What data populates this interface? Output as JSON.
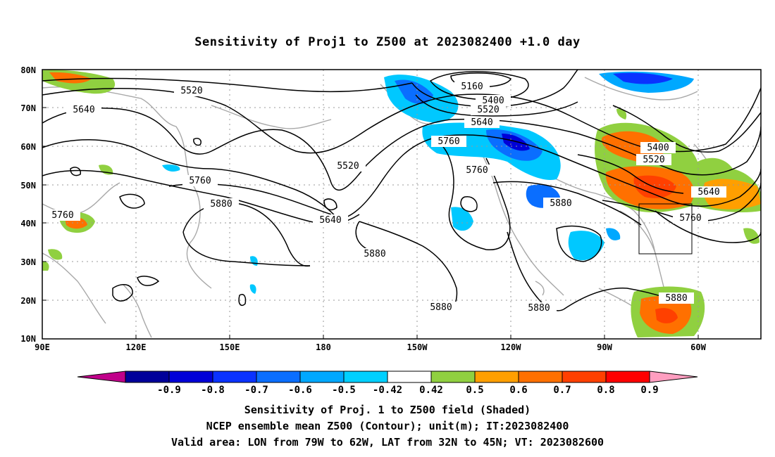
{
  "title": "Sensitivity of Proj1 to Z500 at 2023082400 +1.0 day",
  "axes": {
    "lat_labels": [
      "80N",
      "70N",
      "60N",
      "50N",
      "40N",
      "30N",
      "20N",
      "10N"
    ],
    "lon_labels": [
      "90E",
      "120E",
      "150E",
      "180",
      "150W",
      "120W",
      "90W",
      "60W"
    ]
  },
  "contour_labels": [
    "5520",
    "5640",
    "5160",
    "5400",
    "5520",
    "5640",
    "5760",
    "5400",
    "5520",
    "5640",
    "5760",
    "5760",
    "5880",
    "5520",
    "5640",
    "5760",
    "5880",
    "5880",
    "5880",
    "5880",
    "5880",
    "5760"
  ],
  "colorbar": {
    "ticks": [
      "-0.9",
      "-0.8",
      "-0.7",
      "-0.6",
      "-0.5",
      "-0.42",
      "0.42",
      "0.5",
      "0.6",
      "0.7",
      "0.8",
      "0.9"
    ],
    "colors": [
      "#c0008a",
      "#00009a",
      "#0000d8",
      "#0a32ff",
      "#0a6eff",
      "#00a8ff",
      "#00d0ff",
      "#ffffff",
      "#90d040",
      "#ff9f00",
      "#ff7000",
      "#ff4000",
      "#ff0000",
      "#ff9ec0"
    ]
  },
  "captions": {
    "line1": "Sensitivity of Proj. 1 to Z500 field (Shaded)",
    "line2": "NCEP ensemble mean Z500 (Contour); unit(m); IT:2023082400",
    "line3": "Valid area: LON from 79W to 62W, LAT from 32N to 45N; VT: 2023082600"
  }
}
